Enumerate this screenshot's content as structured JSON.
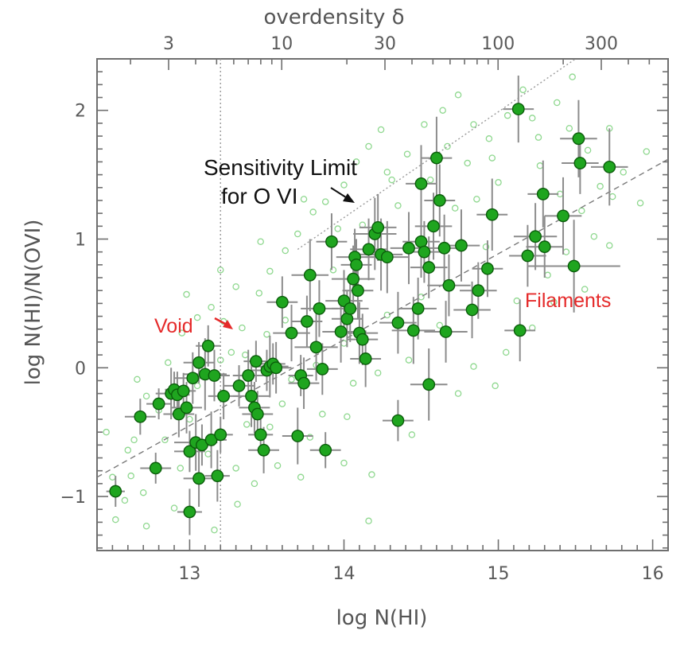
{
  "colors": {
    "point_fill": "#1fa51f",
    "point_edge": "#0b5d0b",
    "sim_edge": "#8fd88f",
    "error_bar": "#8c8c8c",
    "frame": "#6f6f6f",
    "guide_line": "#9a9a9a",
    "annotation_red": "#e52a2a",
    "annotation_black": "#111111"
  },
  "chart_data": {
    "type": "scatter",
    "xlabel": "log N(HI)",
    "ylabel": "log N(HI)/N(OVI)",
    "xlim": [
      12.4,
      16.1
    ],
    "ylim": [
      -1.42,
      2.4
    ],
    "x_ticks": [
      "13",
      "14",
      "15",
      "16"
    ],
    "y_ticks": [
      "−1",
      "0",
      "1",
      "2"
    ],
    "top_axis": {
      "label": "overdensity δ",
      "ticks": [
        "3",
        "10",
        "30",
        "100",
        "300"
      ]
    },
    "grid": false,
    "annotations": {
      "sensitivity_line1": "Sensitivity Limit",
      "sensitivity_line2": "for O VI",
      "void": "Void",
      "filaments": "Filaments"
    },
    "guide_lines": {
      "vertical_x": 13.2,
      "sensitivity_limit": [
        [
          13.7,
          0.92
        ],
        [
          15.5,
          2.4
        ]
      ],
      "dashed_fit": [
        [
          12.4,
          -0.85
        ],
        [
          16.1,
          1.62
        ]
      ]
    },
    "series": [
      {
        "style": "filled",
        "points": [
          [
            12.52,
            -0.96,
            0.06,
            0.12
          ],
          [
            12.68,
            -0.38,
            0.1,
            0.14
          ],
          [
            12.78,
            -0.78,
            0.1,
            0.12
          ],
          [
            12.8,
            -0.28,
            0.08,
            0.12
          ],
          [
            12.88,
            -0.2,
            0.1,
            0.2
          ],
          [
            12.9,
            -0.17,
            0.06,
            0.14
          ],
          [
            12.92,
            -0.21,
            0.08,
            0.18
          ],
          [
            12.93,
            -0.36,
            0.1,
            0.18
          ],
          [
            12.96,
            -0.18,
            0.08,
            0.14
          ],
          [
            12.98,
            -0.31,
            0.1,
            0.2
          ],
          [
            13.0,
            -0.65,
            0.1,
            0.16
          ],
          [
            13.02,
            -0.08,
            0.12,
            0.2
          ],
          [
            13.04,
            -0.58,
            0.14,
            0.22
          ],
          [
            13.06,
            0.04,
            0.1,
            0.16
          ],
          [
            13.08,
            -0.6,
            0.08,
            0.16
          ],
          [
            13.1,
            -0.05,
            0.14,
            0.28
          ],
          [
            13.12,
            0.17,
            0.08,
            0.16
          ],
          [
            13.14,
            -0.56,
            0.1,
            0.22
          ],
          [
            13.16,
            -0.06,
            0.1,
            0.2
          ],
          [
            13.0,
            -1.12,
            0.08,
            0.18
          ],
          [
            13.06,
            -0.86,
            0.1,
            0.22
          ],
          [
            13.18,
            -0.84,
            0.08,
            0.2
          ],
          [
            13.2,
            -0.52,
            0.08,
            0.14
          ],
          [
            13.22,
            -0.22,
            0.1,
            0.18
          ],
          [
            13.32,
            -0.14,
            0.1,
            0.16
          ],
          [
            13.38,
            -0.06,
            0.1,
            0.2
          ],
          [
            13.4,
            -0.22,
            0.12,
            0.24
          ],
          [
            13.42,
            -0.31,
            0.1,
            0.2
          ],
          [
            13.43,
            0.05,
            0.08,
            0.16
          ],
          [
            13.44,
            -0.36,
            0.1,
            0.18
          ],
          [
            13.46,
            -0.52,
            0.08,
            0.14
          ],
          [
            13.48,
            -0.64,
            0.1,
            0.18
          ],
          [
            13.5,
            -0.02,
            0.1,
            0.16
          ],
          [
            13.52,
            0.01,
            0.12,
            0.24
          ],
          [
            13.54,
            0.03,
            0.08,
            0.16
          ],
          [
            13.56,
            0.0,
            0.1,
            0.2
          ],
          [
            13.6,
            0.51,
            0.1,
            0.2
          ],
          [
            13.66,
            0.27,
            0.12,
            0.22
          ],
          [
            13.7,
            -0.53,
            0.1,
            0.22
          ],
          [
            13.72,
            -0.06,
            0.08,
            0.16
          ],
          [
            13.74,
            -0.12,
            0.1,
            0.2
          ],
          [
            13.76,
            0.36,
            0.1,
            0.2
          ],
          [
            13.78,
            0.72,
            0.12,
            0.28
          ],
          [
            13.82,
            0.16,
            0.14,
            0.26
          ],
          [
            13.84,
            0.46,
            0.12,
            0.22
          ],
          [
            13.86,
            -0.01,
            0.1,
            0.2
          ],
          [
            13.88,
            -0.64,
            0.1,
            0.14
          ],
          [
            13.92,
            0.98,
            0.1,
            0.22
          ],
          [
            13.98,
            0.28,
            0.12,
            0.24
          ],
          [
            14.0,
            0.52,
            0.12,
            0.24
          ],
          [
            14.02,
            0.38,
            0.1,
            0.22
          ],
          [
            14.04,
            0.46,
            0.12,
            0.26
          ],
          [
            14.06,
            0.69,
            0.14,
            0.26
          ],
          [
            14.07,
            0.86,
            0.12,
            0.22
          ],
          [
            14.08,
            0.8,
            0.1,
            0.2
          ],
          [
            14.09,
            0.6,
            0.1,
            0.22
          ],
          [
            14.1,
            0.27,
            0.12,
            0.24
          ],
          [
            14.12,
            0.22,
            0.1,
            0.2
          ],
          [
            14.14,
            0.07,
            0.1,
            0.22
          ],
          [
            14.16,
            0.92,
            0.12,
            0.24
          ],
          [
            14.2,
            1.04,
            0.14,
            0.28
          ],
          [
            14.22,
            1.09,
            0.12,
            0.26
          ],
          [
            14.24,
            0.88,
            0.14,
            0.28
          ],
          [
            14.28,
            0.86,
            0.14,
            0.28
          ],
          [
            14.35,
            0.35,
            0.12,
            0.24
          ],
          [
            14.35,
            -0.41,
            0.1,
            0.16
          ],
          [
            14.42,
            0.93,
            0.12,
            0.28
          ],
          [
            14.45,
            0.29,
            0.14,
            0.26
          ],
          [
            14.48,
            0.46,
            0.12,
            0.24
          ],
          [
            14.5,
            0.98,
            0.12,
            0.28
          ],
          [
            14.52,
            0.9,
            0.12,
            0.24
          ],
          [
            14.5,
            1.43,
            0.1,
            0.3
          ],
          [
            14.55,
            0.78,
            0.12,
            0.24
          ],
          [
            14.55,
            -0.13,
            0.12,
            0.28
          ],
          [
            14.58,
            1.1,
            0.12,
            0.26
          ],
          [
            14.6,
            1.63,
            0.1,
            0.32
          ],
          [
            14.62,
            1.3,
            0.1,
            0.28
          ],
          [
            14.65,
            0.93,
            0.12,
            0.26
          ],
          [
            14.68,
            0.64,
            0.14,
            0.24
          ],
          [
            14.66,
            0.28,
            0.14,
            0.24
          ],
          [
            14.76,
            0.95,
            0.12,
            0.28
          ],
          [
            14.83,
            0.45,
            0.12,
            0.22
          ],
          [
            14.87,
            0.6,
            0.12,
            0.22
          ],
          [
            14.93,
            0.77,
            0.1,
            0.22
          ],
          [
            14.96,
            1.19,
            0.1,
            0.28
          ],
          [
            15.13,
            2.01,
            0.1,
            0.26
          ],
          [
            15.14,
            0.29,
            0.1,
            0.24
          ],
          [
            15.19,
            0.87,
            0.12,
            0.24
          ],
          [
            15.24,
            1.02,
            0.14,
            0.26
          ],
          [
            15.29,
            1.35,
            0.1,
            0.26
          ],
          [
            15.3,
            0.94,
            0.12,
            0.24
          ],
          [
            15.42,
            1.18,
            0.12,
            0.3
          ],
          [
            15.49,
            0.79,
            0.3,
            0.36
          ],
          [
            15.52,
            1.78,
            0.12,
            0.3
          ],
          [
            15.53,
            1.59,
            0.12,
            0.24
          ],
          [
            15.72,
            1.56,
            0.12,
            0.3
          ]
        ]
      },
      {
        "style": "open",
        "points": [
          [
            12.46,
            -0.5
          ],
          [
            12.6,
            -0.64
          ],
          [
            12.72,
            -0.22
          ],
          [
            12.95,
            0.27
          ],
          [
            13.05,
            0.39
          ],
          [
            13.14,
            0.47
          ],
          [
            13.22,
            0.36
          ],
          [
            13.3,
            0.63
          ],
          [
            13.36,
            0.1
          ],
          [
            13.45,
            0.58
          ],
          [
            13.52,
            0.75
          ],
          [
            13.62,
            0.91
          ],
          [
            13.7,
            1.04
          ],
          [
            13.8,
            1.21
          ],
          [
            13.88,
            1.29
          ],
          [
            14.0,
            1.42
          ],
          [
            14.08,
            1.6
          ],
          [
            14.16,
            1.72
          ],
          [
            14.24,
            1.85
          ],
          [
            14.31,
            1.46
          ],
          [
            14.41,
            1.66
          ],
          [
            14.52,
            1.89
          ],
          [
            14.64,
            2.0
          ],
          [
            14.74,
            2.12
          ],
          [
            14.84,
            1.89
          ],
          [
            14.96,
            1.63
          ],
          [
            15.06,
            1.96
          ],
          [
            15.16,
            2.16
          ],
          [
            15.26,
            1.79
          ],
          [
            15.38,
            2.06
          ],
          [
            15.46,
            1.86
          ],
          [
            15.58,
            1.69
          ],
          [
            15.66,
            1.41
          ],
          [
            15.74,
            1.33
          ],
          [
            15.81,
            1.52
          ],
          [
            15.92,
            1.28
          ],
          [
            15.72,
            0.95
          ],
          [
            15.56,
            0.61
          ],
          [
            15.32,
            0.72
          ],
          [
            15.12,
            0.52
          ],
          [
            14.92,
            0.94
          ],
          [
            14.86,
            1.31
          ],
          [
            14.72,
            1.24
          ],
          [
            14.62,
            0.33
          ],
          [
            14.42,
            0.06
          ],
          [
            14.22,
            -0.04
          ],
          [
            14.16,
            -1.19
          ],
          [
            14.02,
            -0.38
          ],
          [
            13.86,
            -0.36
          ],
          [
            13.72,
            -0.85
          ],
          [
            13.57,
            -0.76
          ],
          [
            13.42,
            -0.9
          ],
          [
            13.31,
            -1.06
          ],
          [
            13.16,
            -1.26
          ],
          [
            12.9,
            -1.09
          ],
          [
            12.72,
            -1.23
          ],
          [
            12.58,
            -1.03
          ],
          [
            12.52,
            -1.18
          ],
          [
            12.66,
            -0.09
          ],
          [
            12.86,
            0.04
          ],
          [
            13.27,
            0.12
          ],
          [
            13.62,
            0.37
          ],
          [
            13.93,
            0.76
          ],
          [
            14.12,
            1.11
          ],
          [
            14.35,
            1.26
          ],
          [
            14.56,
            1.46
          ],
          [
            14.8,
            1.59
          ],
          [
            15.0,
            1.44
          ],
          [
            15.27,
            1.57
          ],
          [
            15.4,
            1.35
          ],
          [
            15.54,
            1.22
          ],
          [
            15.36,
            0.51
          ],
          [
            15.05,
            0.12
          ],
          [
            14.84,
            0.01
          ],
          [
            14.44,
            -0.52
          ],
          [
            14.06,
            -0.12
          ],
          [
            13.6,
            -0.28
          ],
          [
            13.37,
            -0.44
          ],
          [
            13.05,
            -0.14
          ],
          [
            12.84,
            -0.56
          ],
          [
            12.62,
            -0.84
          ],
          [
            12.98,
            0.57
          ],
          [
            13.2,
            0.76
          ],
          [
            13.46,
            0.98
          ],
          [
            13.74,
            1.31
          ],
          [
            13.96,
            1.08
          ],
          [
            14.28,
            1.52
          ],
          [
            14.67,
            1.72
          ],
          [
            14.94,
            1.78
          ],
          [
            15.22,
            1.94
          ],
          [
            15.48,
            2.26
          ],
          [
            15.72,
            1.86
          ],
          [
            15.96,
            1.68
          ],
          [
            15.62,
            1.02
          ],
          [
            15.44,
            0.9
          ],
          [
            15.22,
            0.31
          ],
          [
            14.98,
            -0.14
          ],
          [
            14.74,
            -0.2
          ],
          [
            14.5,
            0.55
          ],
          [
            14.28,
            0.41
          ],
          [
            14.0,
            0.19
          ],
          [
            13.82,
            0.02
          ],
          [
            13.66,
            -0.09
          ],
          [
            13.5,
            0.26
          ],
          [
            13.34,
            0.31
          ],
          [
            13.2,
            0.06
          ],
          [
            13.0,
            -0.4
          ],
          [
            12.8,
            -0.33
          ],
          [
            12.64,
            -0.56
          ],
          [
            12.5,
            -0.85
          ],
          [
            12.7,
            -0.97
          ],
          [
            12.94,
            -0.78
          ],
          [
            13.12,
            -0.67
          ],
          [
            13.3,
            -0.78
          ],
          [
            13.52,
            -0.46
          ],
          [
            13.78,
            -0.54
          ],
          [
            14.0,
            -0.74
          ],
          [
            14.18,
            -0.83
          ]
        ]
      }
    ]
  }
}
